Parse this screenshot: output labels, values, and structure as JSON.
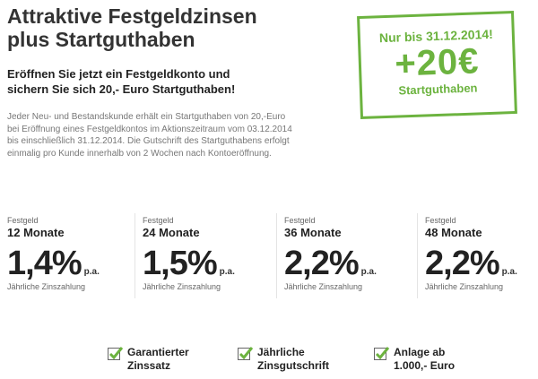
{
  "headline": {
    "line1": "Attraktive Festgeldzinsen",
    "line2": "plus Startguthaben"
  },
  "subhead": {
    "line1": "Eröffnen Sie jetzt ein Festgeldkonto und",
    "line2": "sichern Sie sich 20,- Euro Startguthaben!"
  },
  "body": {
    "lines": [
      "Jeder Neu- und Bestandskunde erhält ein Startguthaben von 20,-Euro",
      "bei Eröffnung eines Festgeldkontos im Aktionszeitraum vom 03.12.2014",
      "bis einschließlich 31.12.2014. Die Gutschrift des Startguthabens erfolgt",
      "einmalig pro Kunde innerhalb von 2 Wochen nach Kontoeröffnung."
    ]
  },
  "badge": {
    "top": "Nur bis 31.12.2014!",
    "amount": "+20€",
    "bottom": "Startguthaben",
    "color": "#6cb33f"
  },
  "rates": [
    {
      "type": "Festgeld",
      "term": "12 Monate",
      "value": "1,4%",
      "pa": "p.a.",
      "note": "Jährliche Zinszahlung"
    },
    {
      "type": "Festgeld",
      "term": "24 Monate",
      "value": "1,5%",
      "pa": "p.a.",
      "note": "Jährliche Zinszahlung"
    },
    {
      "type": "Festgeld",
      "term": "36 Monate",
      "value": "2,2%",
      "pa": "p.a.",
      "note": "Jährliche Zinszahlung"
    },
    {
      "type": "Festgeld",
      "term": "48 Monate",
      "value": "2,2%",
      "pa": "p.a.",
      "note": "Jährliche Zinszahlung"
    }
  ],
  "features": [
    {
      "line1": "Garantierter",
      "line2": "Zinssatz",
      "icon": "checkbox-checked-icon"
    },
    {
      "line1": "Jährliche",
      "line2": "Zinsgutschrift",
      "icon": "checkbox-checked-icon"
    },
    {
      "line1": "Anlage ab",
      "line2": "1.000,- Euro",
      "icon": "checkbox-checked-icon"
    }
  ]
}
